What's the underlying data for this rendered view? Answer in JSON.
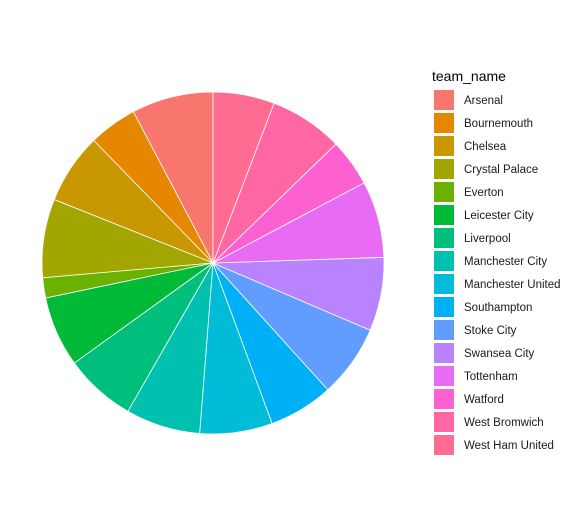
{
  "chart_data": {
    "type": "pie",
    "legend_title": "team_name",
    "legend_position": "right",
    "categories": [
      "Arsenal",
      "Bournemouth",
      "Chelsea",
      "Crystal Palace",
      "Everton",
      "Leicester City",
      "Liverpool",
      "Manchester City",
      "Manchester United",
      "Southampton",
      "Stoke City",
      "Swansea City",
      "Tottenham",
      "Watford",
      "West Bromwich",
      "West Ham United"
    ],
    "values": [
      8.1,
      4.8,
      7.0,
      7.8,
      2.0,
      7.0,
      7.1,
      7.4,
      7.2,
      6.4,
      7.2,
      7.3,
      7.6,
      4.7,
      7.3,
      6.1
    ],
    "colors": [
      "#F8766D",
      "#E58700",
      "#C99800",
      "#A3A500",
      "#6BB100",
      "#00BA38",
      "#00BF7D",
      "#00C0AF",
      "#00BCD8",
      "#00B0F6",
      "#619CFF",
      "#B983FF",
      "#E76BF3",
      "#FD61D1",
      "#FF67A4",
      "#FF6C91"
    ],
    "grid": false
  }
}
